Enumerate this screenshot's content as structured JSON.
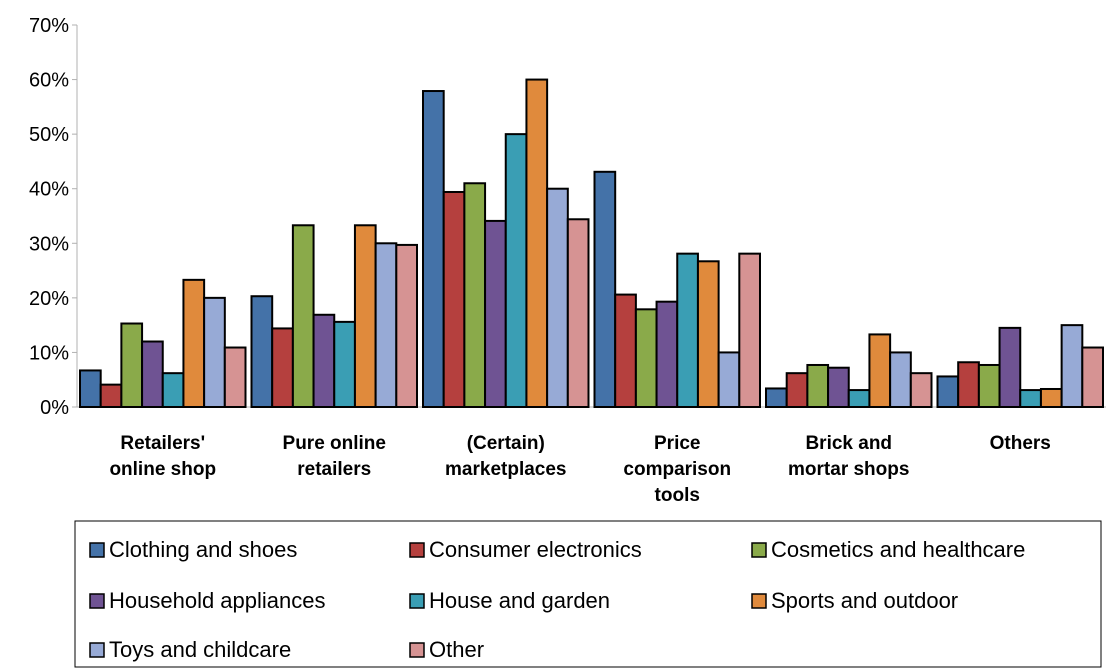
{
  "chart_data": {
    "type": "bar",
    "title": "",
    "xlabel": "",
    "ylabel": "",
    "ylim": [
      0,
      70
    ],
    "yticks": [
      0,
      10,
      20,
      30,
      40,
      50,
      60,
      70
    ],
    "ytick_labels": [
      "0%",
      "10%",
      "20%",
      "30%",
      "40%",
      "50%",
      "60%",
      "70%"
    ],
    "grid": false,
    "legend_position": "bottom",
    "categories": [
      [
        "Retailers'",
        "online shop"
      ],
      [
        "Pure online",
        "retailers"
      ],
      [
        "(Certain)",
        "marketplaces"
      ],
      [
        "Price",
        "comparison",
        "tools"
      ],
      [
        "Brick and",
        "mortar shops"
      ],
      [
        "Others"
      ]
    ],
    "series": [
      {
        "name": "Clothing and shoes",
        "color": "#4472a8",
        "values": [
          6.7,
          20.3,
          57.9,
          43.1,
          3.4,
          5.6
        ]
      },
      {
        "name": "Consumer electronics",
        "color": "#b5403e",
        "values": [
          4.1,
          14.4,
          39.4,
          20.6,
          6.2,
          8.2
        ]
      },
      {
        "name": "Cosmetics and healthcare",
        "color": "#8aaa4a",
        "values": [
          15.3,
          33.3,
          41.0,
          17.9,
          7.7,
          7.7
        ]
      },
      {
        "name": "Household appliances",
        "color": "#6f5393",
        "values": [
          12.0,
          16.9,
          34.1,
          19.3,
          7.2,
          14.5
        ]
      },
      {
        "name": "House and garden",
        "color": "#3a9eb4",
        "values": [
          6.2,
          15.6,
          50.0,
          28.1,
          3.1,
          3.1
        ]
      },
      {
        "name": "Sports and outdoor",
        "color": "#e08a3c",
        "values": [
          23.3,
          33.3,
          60.0,
          26.7,
          13.3,
          3.3
        ]
      },
      {
        "name": "Toys and childcare",
        "color": "#97aad6",
        "values": [
          20.0,
          30.0,
          40.0,
          10.0,
          10.0,
          15.0
        ]
      },
      {
        "name": "Other",
        "color": "#d69393",
        "values": [
          10.9,
          29.7,
          34.4,
          28.1,
          6.2,
          10.9
        ]
      }
    ]
  }
}
